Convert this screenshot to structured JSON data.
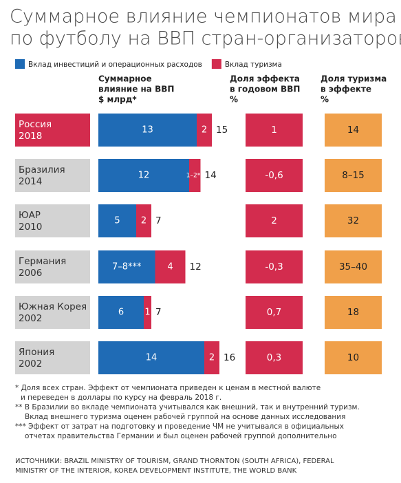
{
  "chart_data": {
    "type": "bar",
    "title": [
      "Суммарное влияние чемпионатов мира",
      "по футболу на ВВП стран-организаторов"
    ],
    "categories": [
      "Россия",
      "Бразилия",
      "ЮАР",
      "Германия",
      "Южная Корея",
      "Япония"
    ],
    "years": [
      "2018",
      "2014",
      "2010",
      "2006",
      "2002",
      "2002"
    ],
    "highlight_color": "#d32c4e",
    "category_color": "#d3d3d3",
    "series": [
      {
        "name": "Вклад инвестиций и операционных расходов",
        "color": "#1f6bb5",
        "values": [
          13,
          12,
          5,
          7.5,
          6,
          14
        ],
        "value_labels": [
          "13",
          "12",
          "5",
          "7–8***",
          "6",
          "14"
        ]
      },
      {
        "name": "Вклад туризма",
        "color": "#d32c4e",
        "values": [
          2,
          1.5,
          2,
          4,
          1,
          2
        ],
        "value_labels": [
          "2",
          "1–2**",
          "2",
          "4",
          "1",
          "2"
        ]
      }
    ],
    "totals": [
      15,
      14,
      7,
      12,
      7,
      16
    ],
    "headers": [
      [
        "Суммарное",
        "влияние на ВВП",
        "$ млрд*"
      ],
      [
        "Доля эффекта",
        "в годовом ВВП",
        "%"
      ],
      [
        "Доля туризма",
        "в эффекте",
        "%"
      ]
    ],
    "gdp_share": [
      "1",
      "-0,6",
      "2",
      "-0,3",
      "0,7",
      "0,3"
    ],
    "gdp_share_color": "#d32c4e",
    "tourism_share": [
      "14",
      "8–15",
      "32",
      "35–40",
      "18",
      "10"
    ],
    "tourism_share_color": "#f0a04a",
    "footnotes": [
      "* Доля всех стран. Эффект от чемпионата приведен к ценам в местной валюте",
      "и переведен в доллары по курсу на февраль 2018 г.",
      "** В Бразилии во вкладе чемпионата учитывался как внешний, так и внутренний туризм.",
      "Вклад внешнего туризма оценен рабочей группой на основе данных исследования",
      "*** Эффект от затрат на подготовку и проведение ЧМ не учитывался в официальных",
      "отчетах правительства Германии и был оценен рабочей группой дополнительно"
    ],
    "sources": [
      "ИСТОЧНИКИ: BRAZIL MINISTRY OF TOURISM, GRAND THORNTON (SOUTH AFRICA), FEDERAL",
      "MINISTRY OF THE INTERIOR, KOREA DEVELOPMENT INSTITUTE, THE WORLD BANK"
    ]
  }
}
